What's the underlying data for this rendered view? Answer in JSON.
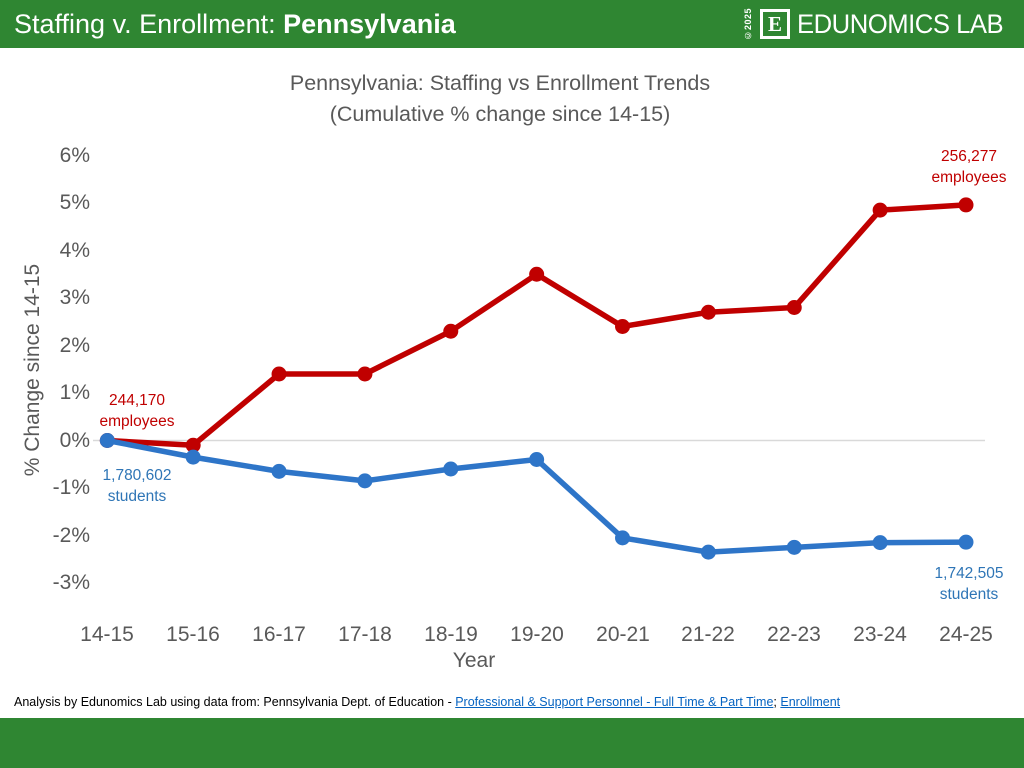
{
  "header": {
    "title_prefix": "Staffing v. Enrollment: ",
    "title_state": "Pennsylvania",
    "logo": {
      "copyright": "©2025",
      "monogram": "E",
      "wordmark": "EDUNOMICS LAB"
    }
  },
  "colors": {
    "header_green": "#2f8632",
    "staffing_red": "#c00000",
    "enrollment_blue": "#2e75c8",
    "axis_text_gray": "#595959",
    "gridline": "#d9d9d9",
    "link_blue": "#0563c1"
  },
  "chart_data": {
    "type": "line",
    "title": "Pennsylvania: Staffing vs Enrollment Trends",
    "subtitle": "(Cumulative % change since 14-15)",
    "xlabel": "Year",
    "ylabel": "% Change since 14-15",
    "ylim": [
      -3,
      6
    ],
    "y_tick_step": 1,
    "grid": "zero-line-only",
    "legend": "none (direct data labels)",
    "categories": [
      "14-15",
      "15-16",
      "16-17",
      "17-18",
      "18-19",
      "19-20",
      "20-21",
      "21-22",
      "22-23",
      "23-24",
      "24-25"
    ],
    "y_tick_labels": [
      "6%",
      "5%",
      "4%",
      "3%",
      "2%",
      "1%",
      "0%",
      "-1%",
      "-2%",
      "-3%"
    ],
    "series": [
      {
        "name": "Staffing (employees)",
        "color": "#c00000",
        "values": [
          0,
          -0.1,
          1.4,
          1.4,
          2.3,
          3.5,
          2.4,
          2.7,
          2.8,
          4.85,
          4.96
        ],
        "start_label": {
          "line1": "244,170",
          "line2": "employees"
        },
        "end_label": {
          "line1": "256,277",
          "line2": "employees"
        }
      },
      {
        "name": "Enrollment (students)",
        "color": "#2e75c8",
        "values": [
          0,
          -0.35,
          -0.65,
          -0.85,
          -0.6,
          -0.4,
          -2.05,
          -2.35,
          -2.25,
          -2.15,
          -2.14
        ],
        "start_label": {
          "line1": "1,780,602",
          "line2": "students"
        },
        "end_label": {
          "line1": "1,742,505",
          "line2": "students"
        }
      }
    ]
  },
  "footer": {
    "prefix": "Analysis by Edunomics Lab using data from: Pennsylvania Dept. of Education - ",
    "link1": "Professional & Support Personnel - Full Time & Part Time",
    "separator": "; ",
    "link2": "Enrollment"
  }
}
